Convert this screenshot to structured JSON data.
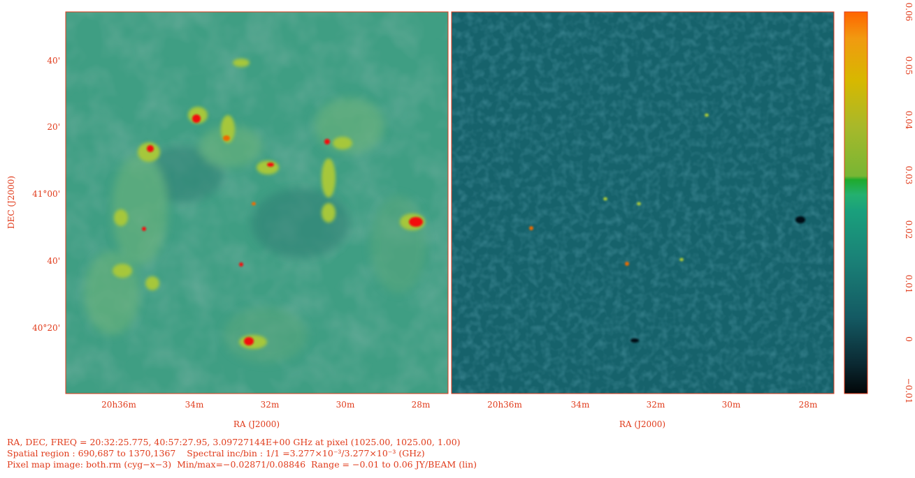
{
  "colors": {
    "accent": "#e03a1a",
    "map_bg_left": "#3f9e83",
    "map_bg_right": "#16626b"
  },
  "left_panel": {
    "ra_ticks": [
      "20h36m",
      "34m",
      "32m",
      "30m",
      "28m"
    ],
    "dec_ticks": [
      "40'",
      "20'",
      "41°00'",
      "40'",
      "40°20'"
    ],
    "xlabel": "RA (J2000)",
    "ylabel": "DEC (J2000)"
  },
  "right_panel": {
    "ra_ticks": [
      "20h36m",
      "34m",
      "32m",
      "30m",
      "28m"
    ],
    "xlabel": "RA (J2000)"
  },
  "colorbar": {
    "ticks": [
      "0.06",
      "0.05",
      "0.04",
      "0.03",
      "0.02",
      "0.01",
      "0",
      "−0.01"
    ],
    "range": [
      -0.01,
      0.06
    ]
  },
  "info": {
    "line1": "RA, DEC, FREQ = 20:32:25.775, 40:57:27.95, 3.09727144E+00 GHz at pixel (1025.00, 1025.00, 1.00)",
    "line2": "Spatial region : 690,687 to 1370,1367    Spectral inc/bin : 1/1 =3.277×10⁻³/3.277×10⁻³ (GHz)",
    "line3": "Pixel map image: both.rm (cyg−x−3)  Min/max=−0.02871/0.08846  Range = −0.01 to 0.06 JY/BEAM (lin)"
  }
}
